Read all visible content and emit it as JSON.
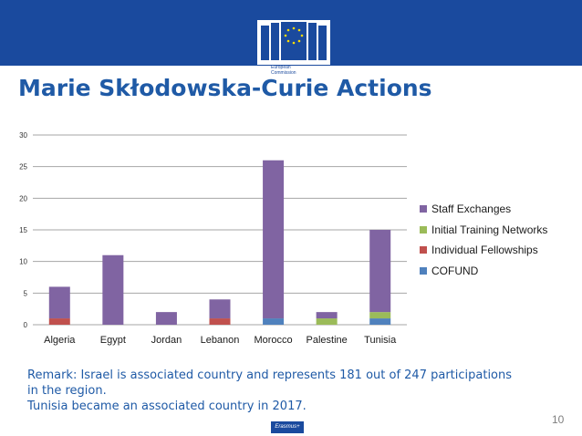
{
  "header": {
    "logo_line1": "European",
    "logo_line2": "Commission",
    "title": "Marie Skłodowska-Curie Actions"
  },
  "colors": {
    "banner": "#1a4a9e",
    "title": "#1f5aa6",
    "staff_exchanges": "#8064a2",
    "initial_training_networks": "#9bbb59",
    "individual_fellowships": "#c0504d",
    "cofund": "#4f81bd"
  },
  "chart_data": {
    "type": "bar",
    "stacked": true,
    "categories": [
      "Algeria",
      "Egypt",
      "Jordan",
      "Lebanon",
      "Morocco",
      "Palestine",
      "Tunisia"
    ],
    "series": [
      {
        "name": "COFUND",
        "color": "#4f81bd",
        "values": [
          0,
          0,
          0,
          0,
          1,
          0,
          1
        ]
      },
      {
        "name": "Individual Fellowships",
        "color": "#c0504d",
        "values": [
          1,
          0,
          0,
          1,
          0,
          0,
          0
        ]
      },
      {
        "name": "Initial Training Networks",
        "color": "#9bbb59",
        "values": [
          0,
          0,
          0,
          0,
          0,
          1,
          1
        ]
      },
      {
        "name": "Staff Exchanges",
        "color": "#8064a2",
        "values": [
          5,
          11,
          2,
          3,
          25,
          1,
          13
        ]
      }
    ],
    "yticks": [
      0,
      5,
      10,
      15,
      20,
      25,
      30
    ],
    "ylim": [
      0,
      30
    ],
    "grid": true,
    "legend_position": "right",
    "legend_order": [
      "Staff Exchanges",
      "Initial Training Networks",
      "Individual Fellowships",
      "COFUND"
    ]
  },
  "remark": {
    "line1": "Remark: Israel is associated country and represents 181 out of 247 participations",
    "line2": "in the region.",
    "line3": "Tunisia became an associated country in 2017."
  },
  "footer": {
    "page_number": "10",
    "erasmus_label": "Erasmus+"
  }
}
